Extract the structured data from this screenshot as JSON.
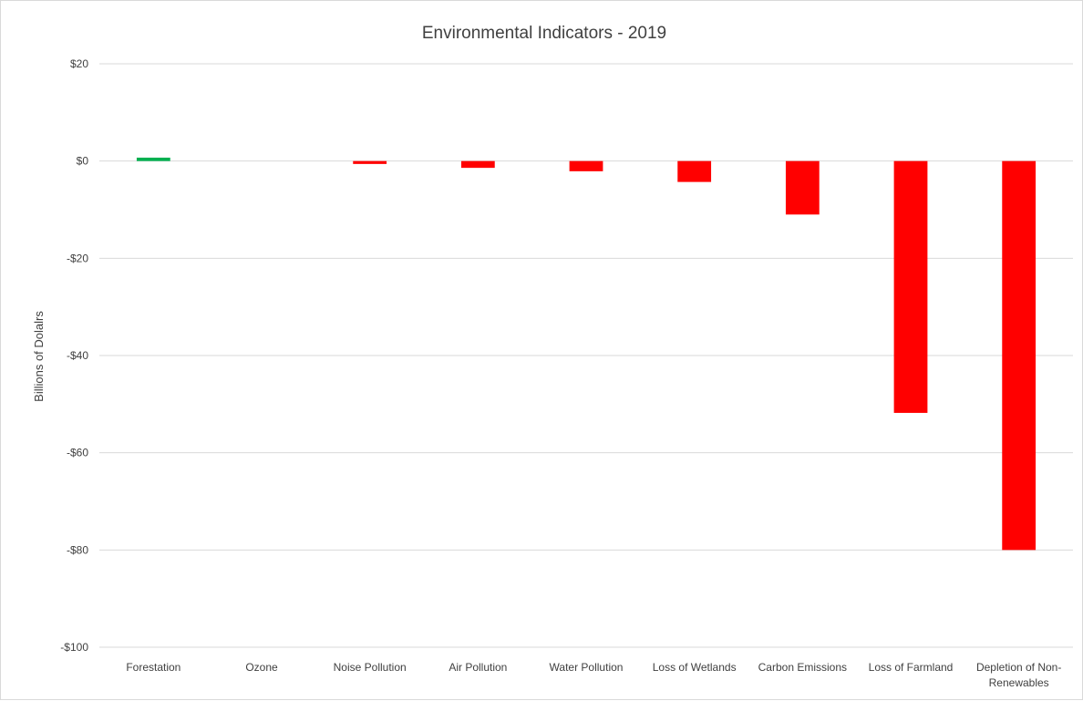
{
  "chart_data": {
    "type": "bar",
    "title": "Environmental Indicators - 2019",
    "xlabel": "",
    "ylabel": "Billions of Dolalrs",
    "ylim": [
      -100,
      20
    ],
    "yticks": [
      20,
      0,
      -20,
      -40,
      -60,
      -80,
      -100
    ],
    "ytick_labels": [
      "$20",
      "$0",
      "-$20",
      "-$40",
      "-$60",
      "-$80",
      "-$100"
    ],
    "grid": true,
    "legend": "none",
    "categories": [
      [
        "Forestation"
      ],
      [
        "Ozone"
      ],
      [
        "Noise Pollution"
      ],
      [
        "Air Pollution"
      ],
      [
        "Water Pollution"
      ],
      [
        "Loss of Wetlands"
      ],
      [
        "Carbon Emissions"
      ],
      [
        "Loss of Farmland"
      ],
      [
        "Depletion of Non-",
        "Renewables"
      ]
    ],
    "values": [
      0.7,
      0,
      -0.6,
      -1.4,
      -2.1,
      -4.3,
      -11,
      -51.8,
      -80
    ],
    "colors": {
      "positive": "#00b050",
      "negative": "#ff0000"
    }
  }
}
